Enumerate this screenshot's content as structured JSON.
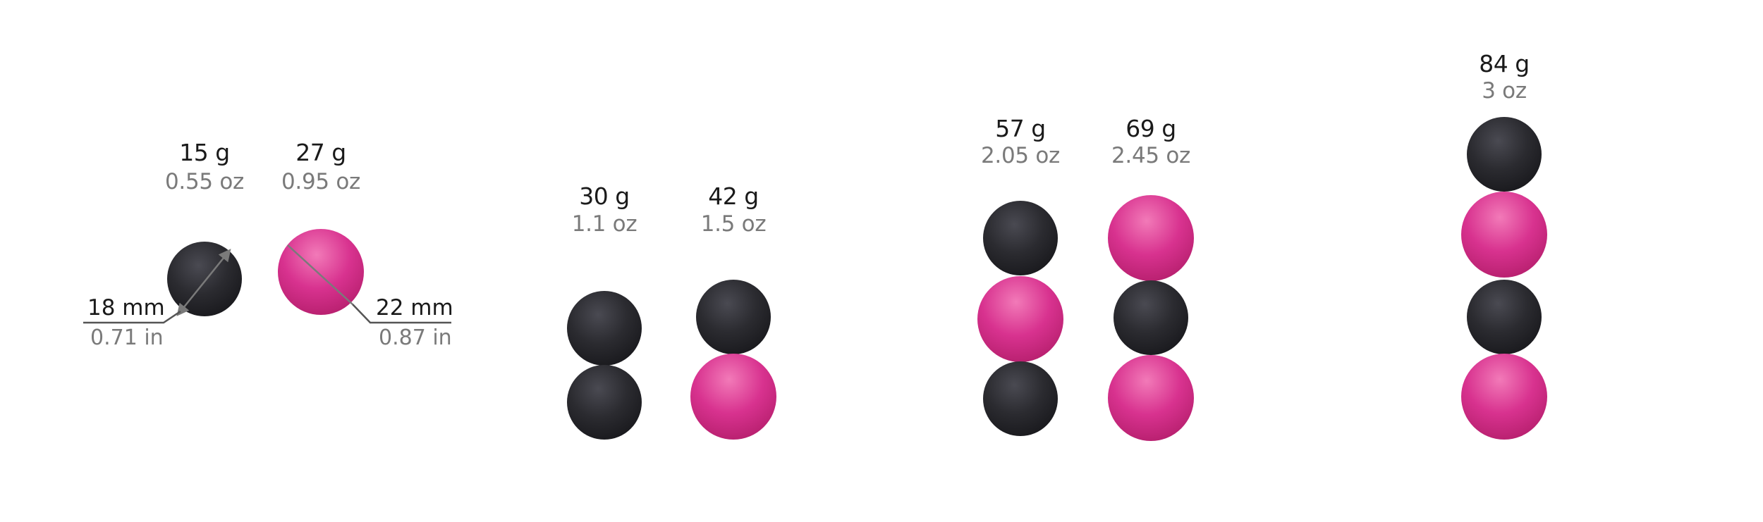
{
  "colors": {
    "black_ball": "#2b2b30",
    "pink_ball": "#d8328f",
    "dimension_line": "#7a7a7a"
  },
  "groups": [
    {
      "weight": "15 g",
      "weight_imperial": "0.55 oz",
      "balls": [
        "black"
      ]
    },
    {
      "weight": "27 g",
      "weight_imperial": "0.95 oz",
      "balls": [
        "pink"
      ]
    },
    {
      "weight": "30 g",
      "weight_imperial": "1.1 oz",
      "balls": [
        "black",
        "black"
      ]
    },
    {
      "weight": "42 g",
      "weight_imperial": "1.5 oz",
      "balls": [
        "black",
        "pink"
      ]
    },
    {
      "weight": "57 g",
      "weight_imperial": "2.05 oz",
      "balls": [
        "black",
        "pink",
        "black"
      ]
    },
    {
      "weight": "69 g",
      "weight_imperial": "2.45 oz",
      "balls": [
        "pink",
        "black",
        "pink"
      ]
    },
    {
      "weight": "84 g",
      "weight_imperial": "3 oz",
      "balls": [
        "black",
        "pink",
        "black",
        "pink"
      ]
    }
  ],
  "dimensions": {
    "small": {
      "metric": "18 mm",
      "imperial": "0.71 in"
    },
    "large": {
      "metric": "22 mm",
      "imperial": "0.87 in"
    }
  }
}
